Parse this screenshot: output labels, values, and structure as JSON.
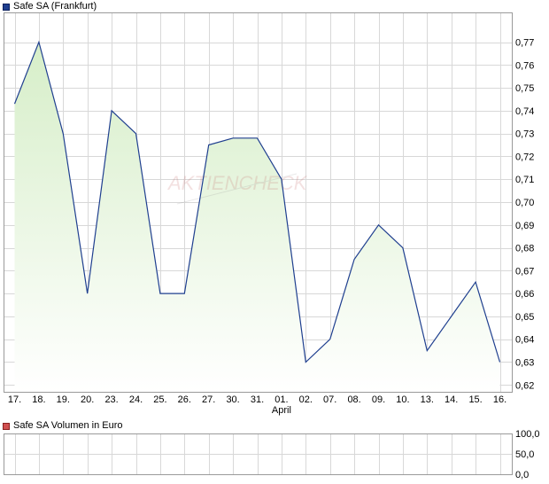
{
  "price_legend": {
    "label": "Safe SA (Frankfurt)",
    "color": "#1f3f8f"
  },
  "volume_legend": {
    "label": "Safe SA Volumen in Euro",
    "color": "#d05050"
  },
  "watermark": "AKTIENCHECK",
  "chart_data": [
    {
      "type": "area",
      "title": "Safe SA (Frankfurt)",
      "categories": [
        "17.",
        "18.",
        "19.",
        "20.",
        "23.",
        "24.",
        "25.",
        "26.",
        "27.",
        "30.",
        "31.",
        "01.",
        "02.",
        "07.",
        "08.",
        "09.",
        "10.",
        "13.",
        "14.",
        "15.",
        "16."
      ],
      "month_label": {
        "text": "April",
        "at_category": "01."
      },
      "series": [
        {
          "name": "Safe SA (Frankfurt)",
          "values": [
            0.743,
            0.77,
            0.73,
            0.66,
            0.74,
            0.73,
            0.66,
            0.66,
            0.725,
            0.728,
            0.728,
            0.71,
            0.63,
            0.64,
            0.675,
            0.69,
            0.68,
            0.635,
            0.65,
            0.665,
            0.63
          ]
        }
      ],
      "y_ticks": [
        "0,62",
        "0,63",
        "0,64",
        "0,65",
        "0,66",
        "0,67",
        "0,68",
        "0,69",
        "0,70",
        "0,71",
        "0,72",
        "0,73",
        "0,74",
        "0,75",
        "0,76",
        "0,77"
      ],
      "ylim": [
        0.617,
        0.783
      ],
      "y_axis_side": "right",
      "grid": true,
      "colors": {
        "line": "#1f3f8f",
        "fill_top": "#d6eec8",
        "fill_bottom": "#ffffff",
        "grid": "#d8d8d8"
      }
    },
    {
      "type": "bar",
      "title": "Safe SA Volumen in Euro",
      "series": [
        {
          "name": "Safe SA Volumen in Euro",
          "values": []
        }
      ],
      "y_ticks": [
        "0,0",
        "50,0",
        "100,0"
      ],
      "ylim": [
        0,
        100
      ],
      "y_axis_side": "right",
      "grid": true
    }
  ]
}
